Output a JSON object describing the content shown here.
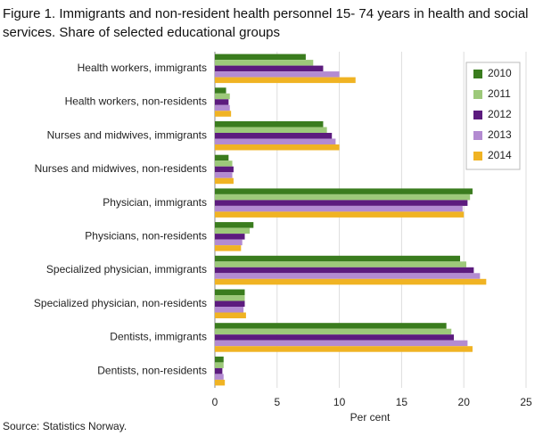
{
  "chart_data": {
    "type": "bar",
    "orientation": "horizontal",
    "title": "Figure 1. Immigrants and non-resident health personnel 15- 74 years in health and social services. Share of selected educational groups",
    "source": "Source: Statistics Norway.",
    "x_label": "Per cent",
    "categories": [
      "Health workers, immigrants",
      "Health workers, non-residents",
      "Nurses and midwives, immigrants",
      "Nurses and midwives, non-residents",
      "Physician, immigrants",
      "Physicians, non-residents",
      "Specialized physician, immigrants",
      "Specialized physician, non-residents",
      "Dentists, immigrants",
      "Dentists, non-residents"
    ],
    "series": [
      {
        "name": "2010",
        "color": "#3a7c1e",
        "values": [
          7.3,
          0.9,
          8.7,
          1.1,
          20.7,
          3.1,
          19.7,
          2.4,
          18.6,
          0.7
        ]
      },
      {
        "name": "2011",
        "color": "#9dc97a",
        "values": [
          7.9,
          1.2,
          9.0,
          1.4,
          20.5,
          2.8,
          20.2,
          2.4,
          19.0,
          0.7
        ]
      },
      {
        "name": "2012",
        "color": "#5c1b7e",
        "values": [
          8.7,
          1.1,
          9.4,
          1.5,
          20.3,
          2.4,
          20.8,
          2.4,
          19.2,
          0.6
        ]
      },
      {
        "name": "2013",
        "color": "#b38bd1",
        "values": [
          10.0,
          1.2,
          9.7,
          1.4,
          19.9,
          2.2,
          21.3,
          2.3,
          20.3,
          0.7
        ]
      },
      {
        "name": "2014",
        "color": "#f0b323",
        "values": [
          11.3,
          1.3,
          10.0,
          1.5,
          20.0,
          2.1,
          21.8,
          2.5,
          20.7,
          0.8
        ]
      }
    ],
    "xlim": [
      0,
      25
    ],
    "xticks": [
      0,
      5,
      10,
      15,
      20,
      25
    ],
    "grid": true,
    "legend": "top-right"
  }
}
